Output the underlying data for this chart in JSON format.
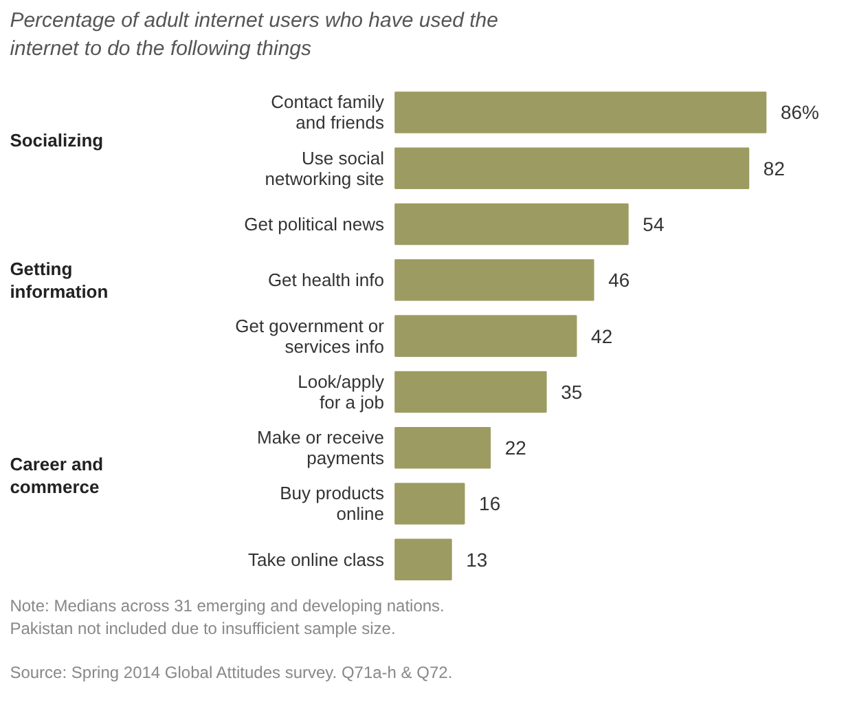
{
  "chart_data": {
    "type": "bar",
    "orientation": "horizontal",
    "title": "Percentage of adult internet users who have used the internet to do the following things",
    "categories": [
      "Contact family\nand friends",
      "Use social\nnetworking site",
      "Get political news",
      "Get health info",
      "Get government or\nservices info",
      "Look/apply\nfor a job",
      "Make or receive\npayments",
      "Buy products\nonline",
      "Take online class"
    ],
    "values": [
      86,
      82,
      54,
      46,
      42,
      35,
      22,
      16,
      13
    ],
    "value_labels": [
      "86%",
      "82",
      "54",
      "46",
      "42",
      "35",
      "22",
      "16",
      "13"
    ],
    "color": "#9c9c62",
    "annotations": [
      "Socializing",
      "Getting\ninformation",
      "Career and\ncommerce",
      "Note: Medians across 31 emerging and developing nations. Pakistan not included due to insufficient sample size.",
      "Source: Spring 2014 Global Attitudes survey. Q71a-h & Q72."
    ]
  }
}
